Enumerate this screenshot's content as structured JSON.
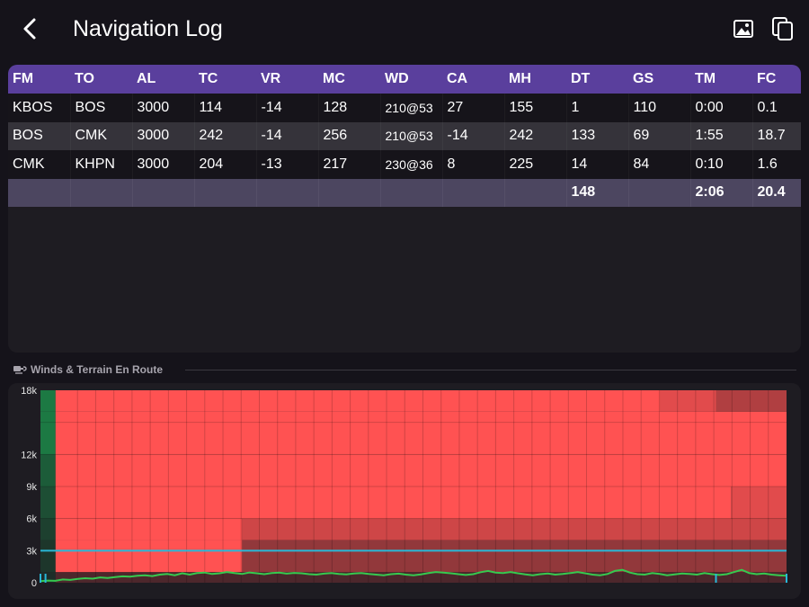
{
  "header": {
    "title": "Navigation Log",
    "back_icon": "chevron-left-icon",
    "actions": [
      {
        "name": "image-icon"
      },
      {
        "name": "copy-icon"
      }
    ]
  },
  "nav_log": {
    "columns": [
      "FM",
      "TO",
      "AL",
      "TC",
      "VR",
      "MC",
      "WD",
      "CA",
      "MH",
      "DT",
      "GS",
      "TM",
      "FC"
    ],
    "rows": [
      [
        "KBOS",
        "BOS",
        "3000",
        "114",
        "-14",
        "128",
        "210@53",
        "27",
        "155",
        "1",
        "110",
        "0:00",
        "0.1"
      ],
      [
        "BOS",
        "CMK",
        "3000",
        "242",
        "-14",
        "256",
        "210@53",
        "-14",
        "242",
        "133",
        "69",
        "1:55",
        "18.7"
      ],
      [
        "CMK",
        "KHPN",
        "3000",
        "204",
        "-13",
        "217",
        "230@36",
        "8",
        "225",
        "14",
        "84",
        "0:10",
        "1.6"
      ]
    ],
    "totals": {
      "DT": "148",
      "TM": "2:06",
      "FC": "20.4"
    }
  },
  "winds_section": {
    "label": "Winds & Terrain En Route",
    "icon": "wind-icon"
  },
  "colors": {
    "header_bar": "#5a3f9d",
    "totals_row": "#4c4660",
    "headwind": "#ff5252",
    "tailwind": "#1b8c4a",
    "terrain": "#36c94f",
    "altitude_line": "#28b8d8"
  },
  "chart_data": {
    "type": "heatmap",
    "x_label": "",
    "y_label": "",
    "y_ticks": [
      "18k",
      "12k",
      "9k",
      "6k",
      "3k",
      "0"
    ],
    "y_tick_values": [
      18000,
      12000,
      9000,
      6000,
      3000,
      0
    ],
    "y_range": [
      0,
      18000
    ],
    "x_range": [
      0,
      148
    ],
    "cruise_altitude": 3000,
    "waypoint_markers_nm": [
      0,
      1,
      134,
      148
    ],
    "altitude_bands": [
      {
        "from": 0,
        "to": 1000,
        "segments": [
          {
            "from_nm": 0,
            "to_nm": 3,
            "level": 0.0,
            "sign": 1
          },
          {
            "from_nm": 3,
            "to_nm": 148,
            "level": 0.1,
            "sign": -1
          }
        ]
      },
      {
        "from": 1000,
        "to": 3000,
        "segments": [
          {
            "from_nm": 0,
            "to_nm": 3,
            "level": 0.1,
            "sign": 1
          },
          {
            "from_nm": 3,
            "to_nm": 40,
            "level": 1.0,
            "sign": -1
          },
          {
            "from_nm": 40,
            "to_nm": 148,
            "level": 0.45,
            "sign": -1
          }
        ]
      },
      {
        "from": 3000,
        "to": 4000,
        "segments": [
          {
            "from_nm": 0,
            "to_nm": 3,
            "level": 0.1,
            "sign": 1
          },
          {
            "from_nm": 3,
            "to_nm": 40,
            "level": 1.0,
            "sign": -1
          },
          {
            "from_nm": 40,
            "to_nm": 148,
            "level": 0.45,
            "sign": -1
          }
        ]
      },
      {
        "from": 4000,
        "to": 6000,
        "segments": [
          {
            "from_nm": 0,
            "to_nm": 3,
            "level": 0.2,
            "sign": 1
          },
          {
            "from_nm": 3,
            "to_nm": 40,
            "level": 1.0,
            "sign": -1
          },
          {
            "from_nm": 40,
            "to_nm": 148,
            "level": 0.75,
            "sign": -1
          }
        ]
      },
      {
        "from": 6000,
        "to": 9000,
        "segments": [
          {
            "from_nm": 0,
            "to_nm": 3,
            "level": 0.35,
            "sign": 1
          },
          {
            "from_nm": 3,
            "to_nm": 137,
            "level": 1.0,
            "sign": -1
          },
          {
            "from_nm": 137,
            "to_nm": 148,
            "level": 0.85,
            "sign": -1
          }
        ]
      },
      {
        "from": 9000,
        "to": 12000,
        "segments": [
          {
            "from_nm": 0,
            "to_nm": 3,
            "level": 0.5,
            "sign": 1
          },
          {
            "from_nm": 3,
            "to_nm": 148,
            "level": 1.0,
            "sign": -1
          }
        ]
      },
      {
        "from": 12000,
        "to": 16000,
        "segments": [
          {
            "from_nm": 0,
            "to_nm": 3,
            "level": 0.8,
            "sign": 1
          },
          {
            "from_nm": 3,
            "to_nm": 148,
            "level": 1.0,
            "sign": -1
          }
        ]
      },
      {
        "from": 16000,
        "to": 18000,
        "segments": [
          {
            "from_nm": 0,
            "to_nm": 3,
            "level": 0.8,
            "sign": 1
          },
          {
            "from_nm": 3,
            "to_nm": 123,
            "level": 1.0,
            "sign": -1
          },
          {
            "from_nm": 123,
            "to_nm": 134,
            "level": 0.85,
            "sign": -1
          },
          {
            "from_nm": 134,
            "to_nm": 148,
            "level": 0.6,
            "sign": -1
          }
        ]
      }
    ],
    "terrain_profile_ft": [
      150,
      200,
      180,
      300,
      260,
      350,
      420,
      380,
      500,
      450,
      520,
      600,
      560,
      650,
      700,
      620,
      760,
      820,
      700,
      880,
      760,
      900,
      950,
      820,
      880,
      1000,
      900,
      820,
      960,
      880,
      800,
      900,
      950,
      850,
      920,
      880,
      800,
      760,
      850,
      900,
      820,
      780,
      860,
      900,
      820,
      760,
      700,
      800,
      850,
      760,
      700,
      780,
      900,
      1000,
      950,
      880,
      800,
      720,
      800,
      980,
      1100,
      950,
      900,
      1000,
      880,
      780,
      700,
      800,
      860,
      760,
      820,
      900,
      1000,
      880,
      760,
      700,
      820,
      1100,
      1200,
      950,
      800,
      760,
      900,
      820,
      700,
      780,
      860,
      820,
      760,
      900,
      800,
      720,
      800,
      1000,
      1200,
      900,
      800,
      860,
      760,
      700,
      650
    ]
  }
}
